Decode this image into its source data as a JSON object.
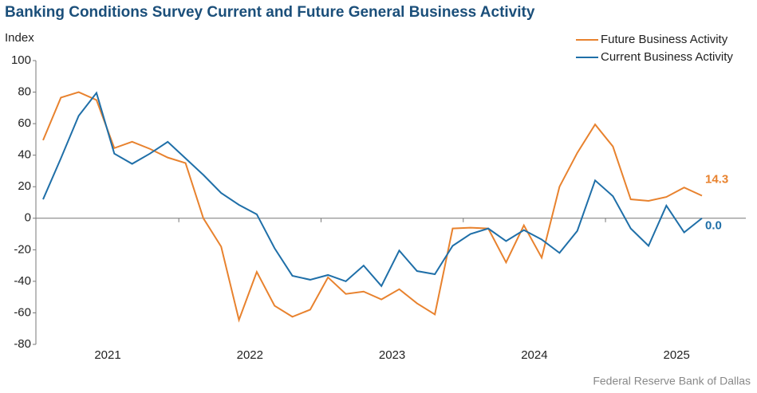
{
  "chart_data": {
    "type": "line",
    "title": "Banking Conditions Survey Current and Future General Business Activity",
    "y_label": "Index",
    "source": "Federal Reserve Bank of Dallas",
    "categories": [
      null,
      null,
      null,
      null,
      null,
      null,
      null,
      null,
      null,
      null,
      null,
      null,
      null,
      null,
      null,
      null,
      null,
      null,
      null,
      null,
      null,
      null,
      null,
      null,
      null,
      null,
      null,
      null,
      null,
      null,
      null,
      null,
      null,
      null,
      null,
      null,
      null,
      null
    ],
    "year_labels": [
      "2021",
      "2022",
      "2023",
      "2024",
      "2025"
    ],
    "ylim": [
      -80,
      100
    ],
    "yticks": [
      -80,
      -60,
      -40,
      -20,
      0,
      20,
      40,
      60,
      80,
      100
    ],
    "legend": "top-right",
    "series": [
      {
        "name": "Future Business Activity",
        "color": "#e8822e",
        "values": [
          49.5,
          76.5,
          80,
          75,
          44.5,
          48.5,
          44,
          38.5,
          35,
          0,
          -18,
          -64.5,
          -34,
          -55.5,
          -62.5,
          -58,
          -37.5,
          -48,
          -46.5,
          -51.5,
          -45,
          -54,
          -61,
          -6.5,
          -6,
          -6.5,
          -28,
          -4.5,
          -25,
          20,
          41.5,
          59.5,
          45.5,
          12,
          11,
          13.5,
          19.5,
          14.3
        ],
        "value_labels": [
          null,
          null,
          null,
          null,
          null,
          null,
          null,
          null,
          null,
          null,
          null,
          null,
          null,
          null,
          null,
          null,
          null,
          null,
          null,
          null,
          null,
          null,
          null,
          null,
          null,
          null,
          null,
          null,
          null,
          null,
          null,
          null,
          null,
          null,
          null,
          null,
          null,
          "14.3"
        ]
      },
      {
        "name": "Current Business Activity",
        "color": "#1f6fa8",
        "values": [
          12,
          38,
          65,
          79.5,
          41,
          34.5,
          41,
          48.5,
          38,
          27.5,
          16,
          8.5,
          2.5,
          -19,
          -36.5,
          -39,
          -36,
          -40,
          -30,
          -43,
          -20.5,
          -33.5,
          -35.5,
          -17.5,
          -10,
          -6.5,
          -14.5,
          -7.5,
          -13.5,
          -22,
          -8,
          24,
          14,
          -6.5,
          -17.5,
          8,
          -9,
          0
        ],
        "value_labels": [
          null,
          null,
          null,
          null,
          null,
          null,
          null,
          null,
          null,
          null,
          null,
          null,
          null,
          null,
          null,
          null,
          null,
          null,
          null,
          null,
          null,
          null,
          null,
          null,
          null,
          null,
          null,
          null,
          null,
          null,
          null,
          null,
          null,
          null,
          null,
          null,
          null,
          "0.0"
        ]
      }
    ]
  }
}
